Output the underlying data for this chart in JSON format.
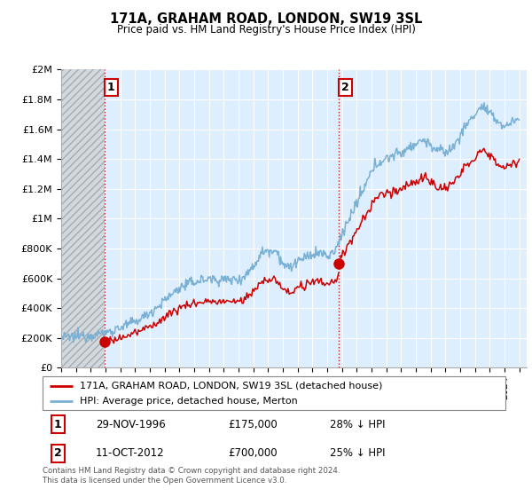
{
  "title": "171A, GRAHAM ROAD, LONDON, SW19 3SL",
  "subtitle": "Price paid vs. HM Land Registry's House Price Index (HPI)",
  "footer": "Contains HM Land Registry data © Crown copyright and database right 2024.\nThis data is licensed under the Open Government Licence v3.0.",
  "legend_line1": "171A, GRAHAM ROAD, LONDON, SW19 3SL (detached house)",
  "legend_line2": "HPI: Average price, detached house, Merton",
  "sale1_date": "29-NOV-1996",
  "sale1_price": "£175,000",
  "sale1_hpi": "28% ↓ HPI",
  "sale2_date": "11-OCT-2012",
  "sale2_price": "£700,000",
  "sale2_hpi": "25% ↓ HPI",
  "price_color": "#cc0000",
  "hpi_color": "#7ab0d4",
  "sale_marker_color": "#cc0000",
  "vline_color": "#cc0000",
  "chart_bg_color": "#ddeeff",
  "hatch_color": "#c8c8c8",
  "ylim": [
    0,
    2000000
  ],
  "yticks": [
    0,
    200000,
    400000,
    600000,
    800000,
    1000000,
    1200000,
    1400000,
    1600000,
    1800000,
    2000000
  ],
  "ytick_labels": [
    "£0",
    "£200K",
    "£400K",
    "£600K",
    "£800K",
    "£1M",
    "£1.2M",
    "£1.4M",
    "£1.6M",
    "£1.8M",
    "£2M"
  ],
  "xmin": 1994.0,
  "xmax": 2025.5,
  "sale1_x": 1996.92,
  "sale1_y": 175000,
  "sale2_x": 2012.78,
  "sale2_y": 700000
}
